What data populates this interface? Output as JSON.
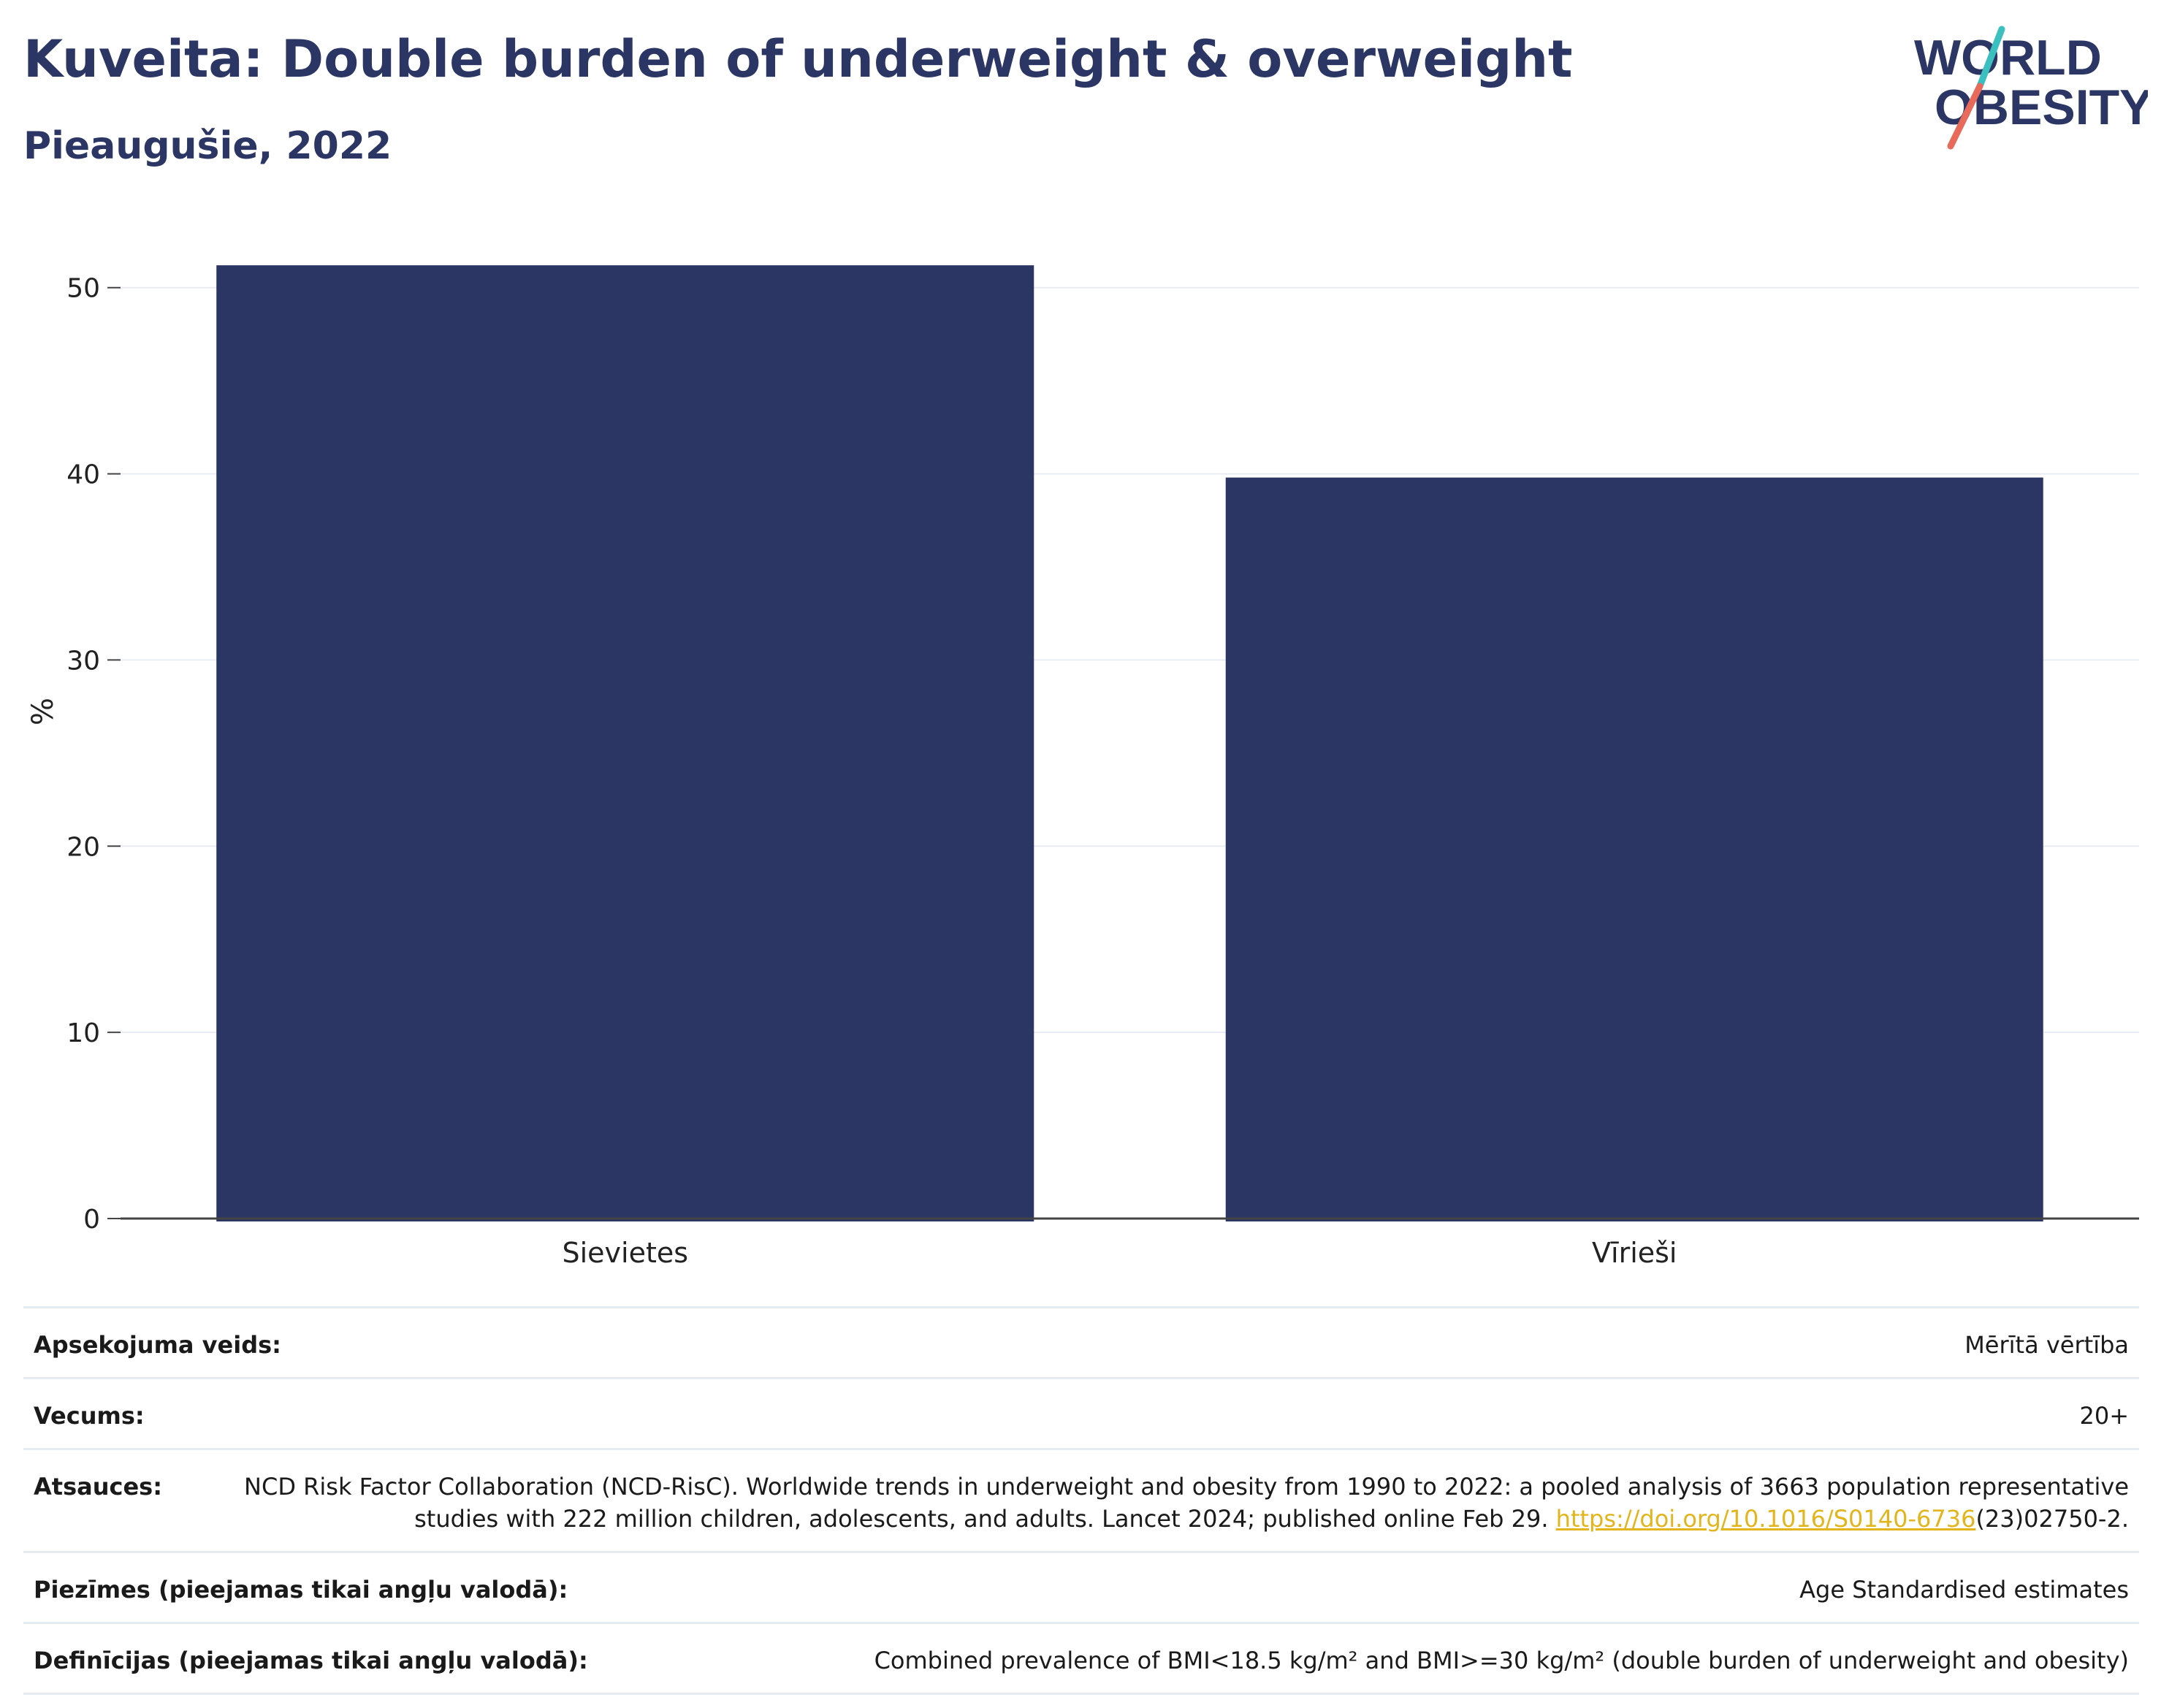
{
  "header": {
    "title": "Kuveita: Double burden of underweight & overweight",
    "subtitle": "Pieaugušie, 2022"
  },
  "logo": {
    "line1": "WORLD",
    "line2": "OBESITY",
    "colors": {
      "navy": "#2b3664",
      "teal": "#3bbfbf",
      "coral": "#e86a5a"
    }
  },
  "chart_data": {
    "type": "bar",
    "categories": [
      "Sievietes",
      "Vīrieši"
    ],
    "values": [
      51.2,
      39.8
    ],
    "ylabel": "%",
    "ylim": [
      0,
      52.5
    ],
    "yticks": [
      0,
      10,
      20,
      30,
      40,
      50
    ],
    "grid": true,
    "bar_color": "#2b3664"
  },
  "meta": {
    "rows": [
      {
        "label": "Apsekojuma veids:",
        "value": "Mērītā vērtība"
      },
      {
        "label": "Vecums:",
        "value": "20+"
      },
      {
        "label": "Atsauces:",
        "value": "NCD Risk Factor Collaboration (NCD-RisC). Worldwide trends in underweight and obesity from 1990 to 2022: a pooled analysis of 3663 population representative studies with 222 million children, adolescents, and adults. Lancet 2024; published online Feb 29.",
        "link": "https://doi.org/10.1016/S0140-6736",
        "link_suffix": "(23)02750-2."
      },
      {
        "label": "Piezīmes (pieejamas tikai angļu valodā):",
        "value": "Age Standardised estimates"
      },
      {
        "label": "Definīcijas (pieejamas tikai angļu valodā):",
        "value": "Combined prevalence of BMI<18.5 kg/m² and BMI>=30 kg/m² (double burden of underweight and obesity)"
      }
    ]
  }
}
